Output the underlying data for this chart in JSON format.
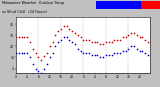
{
  "title_line1": "Milwaukee Weather  Outdoor Temp",
  "title_line2": "vs Wind Chill",
  "title_line3": "(24 Hours)",
  "fig_bg": "#c0c0c0",
  "plot_bg": "#ffffff",
  "grid_color": "#888888",
  "temp_color": "#cc0000",
  "windchill_color": "#0000cc",
  "black_color": "#000000",
  "legend_blue_color": "#0000ff",
  "legend_red_color": "#ff0000",
  "ylim": [
    0,
    50
  ],
  "xlim": [
    0,
    287
  ],
  "yticks": [
    4,
    14,
    24,
    34,
    44
  ],
  "ytick_labels": [
    "4",
    "14",
    "24",
    "34",
    "44"
  ],
  "hours_x": [
    0,
    6,
    12,
    18,
    24,
    30,
    36,
    42,
    48,
    54,
    60,
    66,
    72,
    78,
    84,
    90,
    96,
    102,
    108,
    114,
    120,
    126,
    132,
    138,
    144,
    150,
    156,
    162,
    168,
    174,
    180,
    186,
    192,
    198,
    204,
    210,
    216,
    222,
    228,
    234,
    240,
    246,
    252,
    258,
    264,
    270,
    276,
    282
  ],
  "temp_y": [
    32,
    32,
    32,
    32,
    32,
    28,
    22,
    18,
    14,
    12,
    15,
    18,
    24,
    28,
    34,
    38,
    40,
    42,
    42,
    40,
    38,
    36,
    34,
    32,
    30,
    30,
    30,
    28,
    28,
    28,
    26,
    26,
    28,
    28,
    28,
    30,
    30,
    30,
    32,
    32,
    34,
    36,
    36,
    34,
    32,
    32,
    30,
    28
  ],
  "windchill_y": [
    18,
    18,
    18,
    18,
    18,
    14,
    8,
    4,
    2,
    0,
    4,
    8,
    14,
    18,
    24,
    28,
    30,
    32,
    32,
    30,
    28,
    26,
    22,
    20,
    18,
    18,
    18,
    16,
    16,
    16,
    14,
    14,
    16,
    16,
    16,
    18,
    18,
    18,
    20,
    20,
    22,
    24,
    24,
    22,
    20,
    20,
    18,
    16
  ],
  "vgrid_positions": [
    0,
    48,
    96,
    144,
    192,
    240,
    288
  ],
  "dot_size": 1.5
}
